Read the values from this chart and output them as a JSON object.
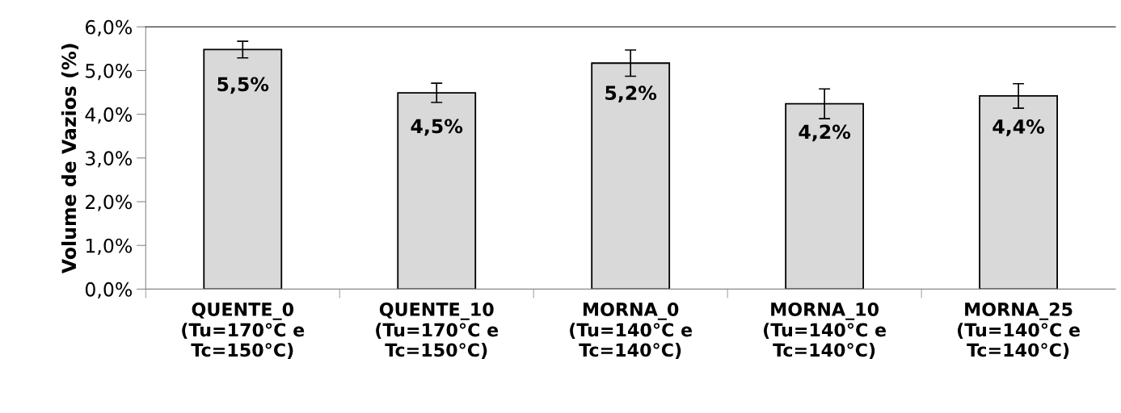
{
  "chart_data": {
    "type": "bar",
    "ylabel": "Volume de Vazios (%)",
    "categories": [
      "QUENTE_0\n(Tu=170°C e\nTc=150°C)",
      "QUENTE_10\n(Tu=170°C e\nTc=150°C)",
      "MORNA_0\n(Tu=140°C e\nTc=140°C)",
      "MORNA_10\n(Tu=140°C e\nTc=140°C)",
      "MORNA_25\n(Tu=140°C e\nTc=140°C)"
    ],
    "values": [
      5.48,
      4.49,
      5.17,
      4.24,
      4.42
    ],
    "errors": [
      0.19,
      0.22,
      0.3,
      0.34,
      0.28
    ],
    "value_labels": [
      "5,5%",
      "4,5%",
      "5,2%",
      "4,2%",
      "4,4%"
    ],
    "color": "#d9d9d9",
    "ylim": [
      0,
      6
    ],
    "yticks": [
      {
        "value": 0,
        "label": "0,0%"
      },
      {
        "value": 1,
        "label": "1,0%"
      },
      {
        "value": 2,
        "label": "2,0%"
      },
      {
        "value": 3,
        "label": "3,0%"
      },
      {
        "value": 4,
        "label": "4,0%"
      },
      {
        "value": 5,
        "label": "5,0%"
      },
      {
        "value": 6,
        "label": "6,0%"
      }
    ],
    "grid": false,
    "legend": false
  }
}
